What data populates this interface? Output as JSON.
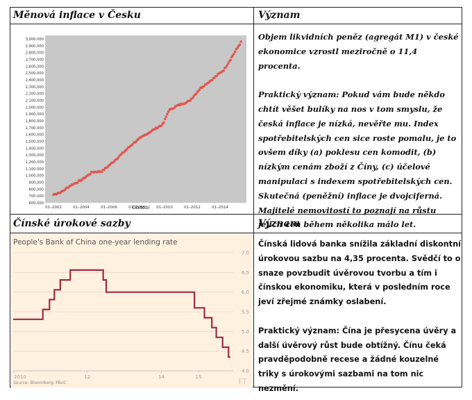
{
  "row1": {
    "left_header": "Měnová inflace v Česku",
    "right_header": "Význam",
    "paragraph1": "Objem likvidních peněz (agregát M1) v české ekonomice vzrostl meziročně o 11,4 procenta.",
    "paragraph2": "Praktický význam:  Pokud vám bude někdo chtít věšet bulíky na nos v tom smyslu, že česká inflace je nízká, nevěřte mu. Index spotřebitelských cen sice roste pomalu, je to ovšem díky (a) poklesu cen komodit, (b) nízkým cenám zboží z Číny, (c) účelové manipulaci s indexem spotřebitelských cen. Skutečná (peněžní) inflace je dvojciferná. Majitelé nemovitostí to poznají na růstu jejich cen během několika málo let."
  },
  "row2": {
    "left_header": "Čínské úrokové sazby",
    "right_header": "Význam",
    "paragraph1": "Čínská lidová banka snížila základní diskontní úrokovou sazbu na 4,35 procenta. Svědčí to o snaze povzbudit úvěrovou tvorbu a tím i čínskou ekonomiku, která v posledním roce jeví zřejmé známky oslabení.",
    "paragraph2": "Praktický význam: Čína je přesycena úvěry a další úvěrový růst bude obtížný. Čínu čeká pravděpodobně recese a žádné kouzelné triky s úrokovými sazbami na tom nic nezmění."
  },
  "chart_data": [
    {
      "type": "scatter",
      "title": "",
      "xlabel": "Období",
      "ylabel": "",
      "x_tick_labels": [
        "01–2002",
        "01–2004",
        "01–2006",
        "01–2008",
        "01–2010",
        "01–2012",
        "01–2014"
      ],
      "x_tick_years": [
        2002,
        2004,
        2006,
        2008,
        2010,
        2012,
        2014
      ],
      "y_tick_labels": [
        "3,000,000",
        "2,900,000",
        "2,800,000",
        "2,700,000",
        "2,600,000",
        "2,500,000",
        "2,400,000",
        "2,300,000",
        "2,200,000",
        "2,100,000",
        "2,000,000",
        "1,900,000",
        "1,800,000",
        "1,700,000",
        "1,600,000",
        "1,500,000",
        "1,400,000",
        "1,300,000",
        "1,200,000",
        "1,100,000",
        "1,000,000",
        "900,000",
        "800,000",
        "700,000",
        "600,000"
      ],
      "xlim": [
        2001.4,
        2015.9
      ],
      "ylim": [
        600000,
        3050000
      ],
      "grid": false,
      "colors": {
        "plot_bg": "#c8c8c8",
        "marker": "#e0574f"
      },
      "anchors": [
        [
          2002.0,
          720000
        ],
        [
          2002.6,
          760000
        ],
        [
          2003.2,
          850000
        ],
        [
          2004.0,
          930000
        ],
        [
          2004.8,
          1050000
        ],
        [
          2005.5,
          1060000
        ],
        [
          2006.2,
          1180000
        ],
        [
          2007.0,
          1330000
        ],
        [
          2007.8,
          1480000
        ],
        [
          2008.5,
          1580000
        ],
        [
          2009.3,
          1680000
        ],
        [
          2009.9,
          1750000
        ],
        [
          2010.3,
          1950000
        ],
        [
          2010.9,
          2020000
        ],
        [
          2011.8,
          2090000
        ],
        [
          2012.6,
          2280000
        ],
        [
          2013.4,
          2400000
        ],
        [
          2014.3,
          2550000
        ],
        [
          2014.9,
          2750000
        ],
        [
          2015.5,
          2950000
        ]
      ]
    },
    {
      "type": "line",
      "title": "People's Bank of China one-year lending rate",
      "source": "Source: Bloomberg; PBoC",
      "watermark": "FT",
      "xlabel": "",
      "ylabel": "",
      "x_tick_labels": [
        "2010",
        "12",
        "14",
        "15"
      ],
      "x_tick_values": [
        2010.0,
        2012.0,
        2014.0,
        2015.0
      ],
      "y_tick_labels": [
        "7.0",
        "6.5",
        "6.0",
        "5.5",
        "5.0",
        "4.5",
        "4.0"
      ],
      "y_tick_values": [
        7.0,
        6.5,
        6.0,
        5.5,
        5.0,
        4.5,
        4.0
      ],
      "xlim": [
        2010.0,
        2015.9
      ],
      "ylim": [
        4.0,
        7.0
      ],
      "grid": true,
      "colors": {
        "plot_bg": "#fff1e0",
        "line": "#9c2a46",
        "grid": "#e8d6c4"
      },
      "points": [
        [
          2010.0,
          5.31
        ],
        [
          2010.8,
          5.31
        ],
        [
          2010.8,
          5.56
        ],
        [
          2010.98,
          5.56
        ],
        [
          2010.98,
          5.81
        ],
        [
          2011.11,
          5.81
        ],
        [
          2011.11,
          6.06
        ],
        [
          2011.27,
          6.06
        ],
        [
          2011.27,
          6.31
        ],
        [
          2011.54,
          6.31
        ],
        [
          2011.54,
          6.56
        ],
        [
          2012.43,
          6.56
        ],
        [
          2012.43,
          6.31
        ],
        [
          2012.51,
          6.31
        ],
        [
          2012.51,
          6.0
        ],
        [
          2014.89,
          6.0
        ],
        [
          2014.89,
          5.6
        ],
        [
          2015.16,
          5.6
        ],
        [
          2015.16,
          5.35
        ],
        [
          2015.36,
          5.35
        ],
        [
          2015.36,
          5.1
        ],
        [
          2015.48,
          5.1
        ],
        [
          2015.48,
          4.85
        ],
        [
          2015.65,
          4.85
        ],
        [
          2015.65,
          4.6
        ],
        [
          2015.81,
          4.6
        ],
        [
          2015.81,
          4.35
        ],
        [
          2015.86,
          4.35
        ]
      ]
    }
  ]
}
